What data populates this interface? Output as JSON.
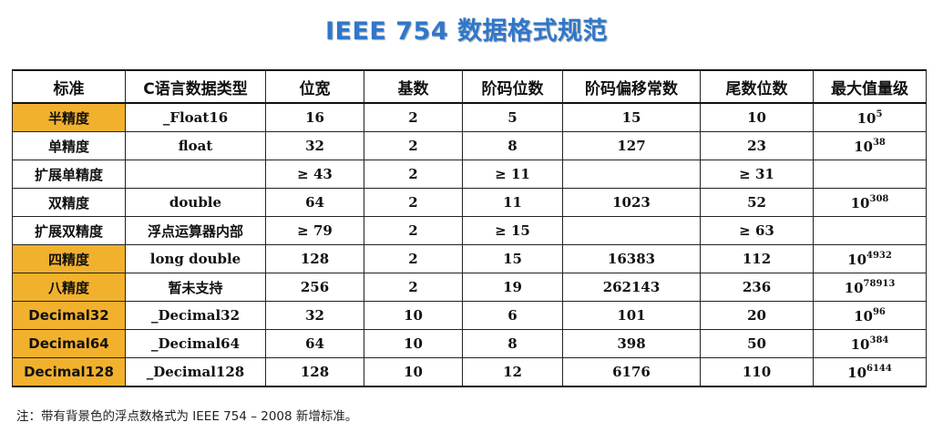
{
  "title": "IEEE 754 数据格式规范",
  "headers": [
    "标准",
    "C语言数据类型",
    "位宽",
    "基数",
    "阶码位数",
    "阶码偏移常数",
    "尾数位数",
    "最大值量级"
  ],
  "colors": {
    "highlight": "#f2b12d",
    "title": "#2e77cc"
  },
  "rows": [
    {
      "standard": "半精度",
      "highlight": true,
      "ctype": "_Float16",
      "width": "16",
      "base": "2",
      "exp_bits": "5",
      "bias": "15",
      "mantissa": "10",
      "mag_base": "10",
      "mag_exp": "5"
    },
    {
      "standard": "单精度",
      "highlight": false,
      "ctype": "float",
      "width": "32",
      "base": "2",
      "exp_bits": "8",
      "bias": "127",
      "mantissa": "23",
      "mag_base": "10",
      "mag_exp": "38"
    },
    {
      "standard": "扩展单精度",
      "highlight": false,
      "ctype": "",
      "width": "≥ 43",
      "base": "2",
      "exp_bits": "≥ 11",
      "bias": "",
      "mantissa": "≥ 31",
      "mag_base": "",
      "mag_exp": ""
    },
    {
      "standard": "双精度",
      "highlight": false,
      "ctype": "double",
      "width": "64",
      "base": "2",
      "exp_bits": "11",
      "bias": "1023",
      "mantissa": "52",
      "mag_base": "10",
      "mag_exp": "308"
    },
    {
      "standard": "扩展双精度",
      "highlight": false,
      "ctype": "浮点运算器内部",
      "width": "≥ 79",
      "base": "2",
      "exp_bits": "≥ 15",
      "bias": "",
      "mantissa": "≥ 63",
      "mag_base": "",
      "mag_exp": ""
    },
    {
      "standard": "四精度",
      "highlight": true,
      "ctype": "long double",
      "width": "128",
      "base": "2",
      "exp_bits": "15",
      "bias": "16383",
      "mantissa": "112",
      "mag_base": "10",
      "mag_exp": "4932"
    },
    {
      "standard": "八精度",
      "highlight": true,
      "ctype": "暂未支持",
      "width": "256",
      "base": "2",
      "exp_bits": "19",
      "bias": "262143",
      "mantissa": "236",
      "mag_base": "10",
      "mag_exp": "78913"
    },
    {
      "standard": "Decimal32",
      "highlight": true,
      "ctype": "_Decimal32",
      "width": "32",
      "base": "10",
      "exp_bits": "6",
      "bias": "101",
      "mantissa": "20",
      "mag_base": "10",
      "mag_exp": "96"
    },
    {
      "standard": "Decimal64",
      "highlight": true,
      "ctype": "_Decimal64",
      "width": "64",
      "base": "10",
      "exp_bits": "8",
      "bias": "398",
      "mantissa": "50",
      "mag_base": "10",
      "mag_exp": "384"
    },
    {
      "standard": "Decimal128",
      "highlight": true,
      "ctype": "_Decimal128",
      "width": "128",
      "base": "10",
      "exp_bits": "12",
      "bias": "6176",
      "mantissa": "110",
      "mag_base": "10",
      "mag_exp": "6144"
    }
  ],
  "note": "注：带有背景色的浮点数格式为 IEEE 754 – 2008 新增标准。"
}
